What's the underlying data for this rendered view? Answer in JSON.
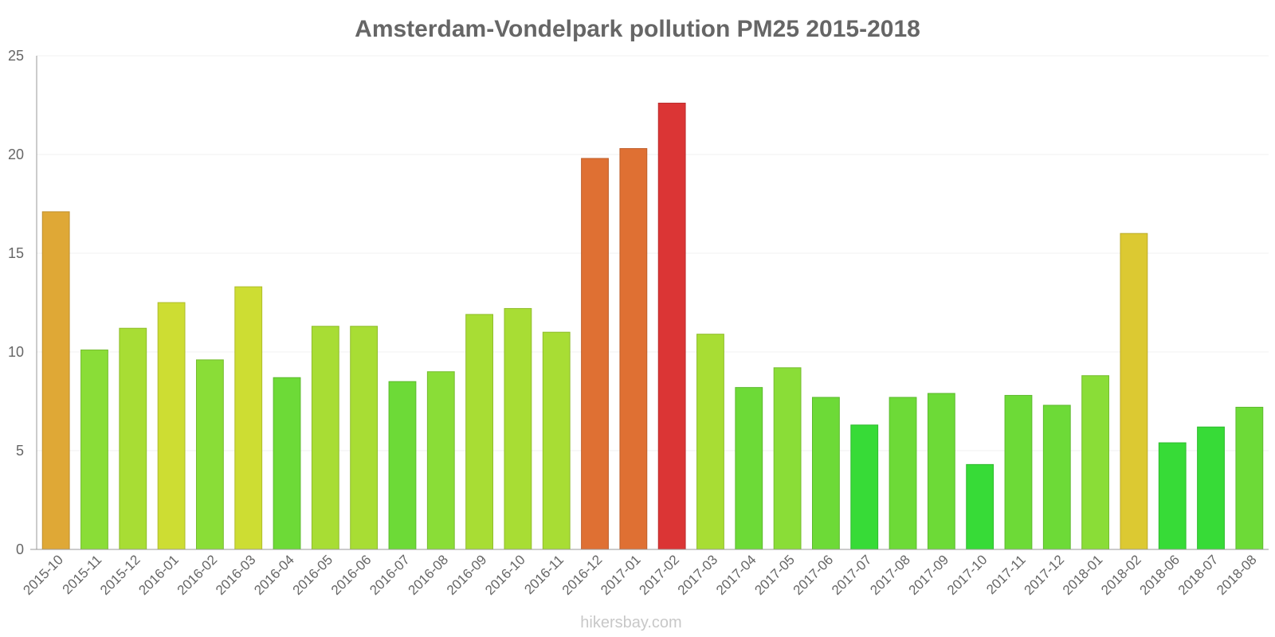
{
  "chart_data": {
    "type": "bar",
    "title": "Amsterdam-Vondelpark pollution PM25 2015-2018",
    "xlabel": "",
    "ylabel": "",
    "ylim": [
      0,
      25
    ],
    "yticks": [
      0,
      5,
      10,
      15,
      20,
      25
    ],
    "grid": true,
    "categories": [
      "2015-10",
      "2015-11",
      "2015-12",
      "2016-01",
      "2016-02",
      "2016-03",
      "2016-04",
      "2016-05",
      "2016-06",
      "2016-07",
      "2016-08",
      "2016-09",
      "2016-10",
      "2016-11",
      "2016-12",
      "2017-01",
      "2017-02",
      "2017-03",
      "2017-04",
      "2017-05",
      "2017-06",
      "2017-07",
      "2017-08",
      "2017-09",
      "2017-10",
      "2017-11",
      "2017-12",
      "2018-01",
      "2018-02",
      "2018-06",
      "2018-07",
      "2018-08"
    ],
    "values": [
      17.1,
      10.1,
      11.2,
      12.5,
      9.6,
      13.3,
      8.7,
      11.3,
      11.3,
      8.5,
      9.0,
      11.9,
      12.2,
      11.0,
      19.8,
      20.3,
      22.6,
      10.9,
      8.2,
      9.2,
      7.7,
      6.3,
      7.7,
      7.9,
      4.3,
      7.8,
      7.3,
      8.8,
      16.0,
      5.4,
      6.2,
      7.2
    ],
    "colors": [
      "#dfa836",
      "#8add37",
      "#a8dd34",
      "#cddd33",
      "#8add37",
      "#cddd33",
      "#6dda37",
      "#a8dd34",
      "#a8dd34",
      "#6dda37",
      "#8add37",
      "#a8dd34",
      "#a8dd34",
      "#a8dd34",
      "#df7033",
      "#df7033",
      "#db3535",
      "#a8dd34",
      "#6dda37",
      "#8add37",
      "#6dda37",
      "#37db37",
      "#6dda37",
      "#6dda37",
      "#37db37",
      "#6dda37",
      "#6dda37",
      "#8add37",
      "#dcc932",
      "#37db37",
      "#37db37",
      "#6dda37"
    ]
  },
  "watermark": "hikersbay.com"
}
